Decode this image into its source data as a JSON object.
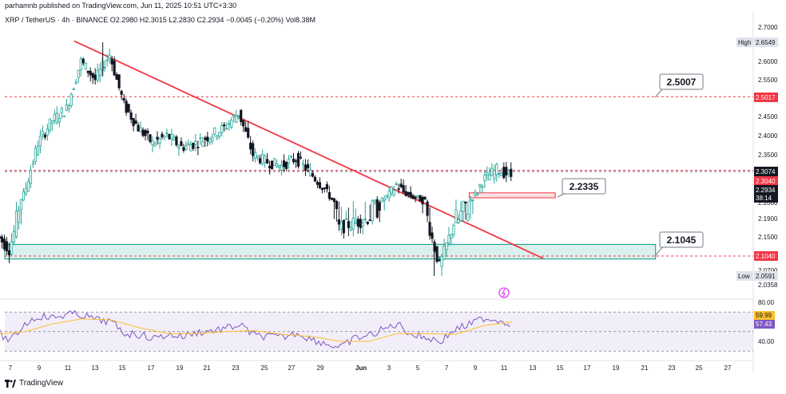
{
  "header": {
    "published": "parhamnb published on TradingView.com, Jun 11, 2025 10:51 UTC+3:30",
    "symbol_line": "XRP / TetherUS · 4h · BINANCE",
    "ohlc": {
      "o": "O2.2980",
      "h": "H2.3015",
      "l": "L2.2830",
      "c": "C2.2934",
      "chg": "−0.0045 (−0.20%)",
      "vol": "Vol8.38M"
    }
  },
  "footer": {
    "brand": "TradingView"
  },
  "colors": {
    "up": "#26a69a",
    "down": "#131722",
    "trend": "#f23645",
    "zone_green": "#089981",
    "zone_red": "#f23645",
    "rsi": "#7e57c2",
    "rsi_ma": "#fbc02d",
    "dash_red": "#f23645"
  },
  "chart_data": {
    "type": "candlestick",
    "price_axis": {
      "min": 2.0358,
      "max": 2.7,
      "ticks": [
        "2.7000",
        "2.6500",
        "2.6000",
        "2.5500",
        "2.5000",
        "2.4500",
        "2.4000",
        "2.3500",
        "2.3000",
        "2.2500",
        "2.2000",
        "2.1900",
        "2.1500",
        "2.0700",
        "2.0358"
      ]
    },
    "x_axis": {
      "ticks": [
        "7",
        "9",
        "11",
        "13",
        "15",
        "17",
        "19",
        "21",
        "23",
        "25",
        "27",
        "29",
        "Jun",
        "3",
        "5",
        "7",
        "9",
        "11",
        "13",
        "15",
        "17",
        "19",
        "21",
        "23",
        "25",
        "27"
      ]
    },
    "price_labels": {
      "high": {
        "label": "High",
        "value": "2.6549"
      },
      "low": {
        "label": "Low",
        "value": "2.0591"
      },
      "line_25017": "2.5017",
      "line_23074": "2.3074",
      "line_23040": "2.3040",
      "current": "2.2934",
      "countdown": "38:14",
      "line_21040": "2.1040"
    },
    "annotations": [
      {
        "text": "2.5007",
        "target_price": 2.5007
      },
      {
        "text": "2.2335",
        "target_price": 2.2335
      },
      {
        "text": "2.1045",
        "target_price": 2.1045
      }
    ],
    "horizontal_levels": [
      2.5017,
      2.3074,
      2.304,
      2.104
    ],
    "trendline": {
      "from": {
        "date": "May 12",
        "price": 2.68
      },
      "to": {
        "date": "Jun 13",
        "price": 2.123
      }
    },
    "zones": [
      {
        "name": "support",
        "price_top": 2.132,
        "price_bottom": 2.097,
        "from": "May 6",
        "to": "Jun 21"
      },
      {
        "name": "demand",
        "price_top": 2.247,
        "price_bottom": 2.223,
        "from": "Jun 8",
        "to": "Jun 14"
      }
    ],
    "price_path": [
      [
        "May 6",
        2.16
      ],
      [
        "May 7",
        2.12
      ],
      [
        "May 8",
        2.24
      ],
      [
        "May 9",
        2.38
      ],
      [
        "May 10",
        2.44
      ],
      [
        "May 11",
        2.47
      ],
      [
        "May 12",
        2.6
      ],
      [
        "May 13",
        2.55
      ],
      [
        "May 14",
        2.62
      ],
      [
        "May 15",
        2.48
      ],
      [
        "May 16",
        2.42
      ],
      [
        "May 17",
        2.38
      ],
      [
        "May 18",
        2.4
      ],
      [
        "May 19",
        2.37
      ],
      [
        "May 20",
        2.38
      ],
      [
        "May 21",
        2.4
      ],
      [
        "May 22",
        2.42
      ],
      [
        "May 23",
        2.46
      ],
      [
        "May 24",
        2.35
      ],
      [
        "May 25",
        2.33
      ],
      [
        "May 26",
        2.32
      ],
      [
        "May 27",
        2.34
      ],
      [
        "May 28",
        2.3
      ],
      [
        "May 29",
        2.26
      ],
      [
        "May 30",
        2.17
      ],
      [
        "May 31",
        2.18
      ],
      [
        "Jun 1",
        2.19
      ],
      [
        "Jun 2",
        2.21
      ],
      [
        "Jun 3",
        2.27
      ],
      [
        "Jun 4",
        2.23
      ],
      [
        "Jun 5",
        2.21
      ],
      [
        "Jun 6",
        2.08
      ],
      [
        "Jun 7",
        2.18
      ],
      [
        "Jun 8",
        2.2
      ],
      [
        "Jun 9",
        2.28
      ],
      [
        "Jun 10",
        2.31
      ],
      [
        "Jun 11",
        2.293
      ]
    ],
    "rsi": {
      "axis_ticks": [
        "80.00",
        "40.00"
      ],
      "labels": {
        "rsi_ma": "59.99",
        "rsi": "57.43"
      },
      "levels": [
        70,
        50,
        30
      ],
      "path": [
        [
          "May 6",
          50
        ],
        [
          "May 7",
          40
        ],
        [
          "May 8",
          58
        ],
        [
          "May 9",
          66
        ],
        [
          "May 10",
          64
        ],
        [
          "May 11",
          68
        ],
        [
          "May 12",
          67
        ],
        [
          "May 13",
          62
        ],
        [
          "May 14",
          60
        ],
        [
          "May 15",
          48
        ],
        [
          "May 16",
          47
        ],
        [
          "May 17",
          43
        ],
        [
          "May 18",
          47
        ],
        [
          "May 19",
          45
        ],
        [
          "May 20",
          49
        ],
        [
          "May 21",
          51
        ],
        [
          "May 22",
          53
        ],
        [
          "May 23",
          57
        ],
        [
          "May 24",
          46
        ],
        [
          "May 25",
          45
        ],
        [
          "May 26",
          44
        ],
        [
          "May 27",
          49
        ],
        [
          "May 28",
          42
        ],
        [
          "May 29",
          38
        ],
        [
          "May 30",
          33
        ],
        [
          "May 31",
          43
        ],
        [
          "Jun 1",
          46
        ],
        [
          "Jun 2",
          52
        ],
        [
          "Jun 3",
          58
        ],
        [
          "Jun 4",
          47
        ],
        [
          "Jun 5",
          44
        ],
        [
          "Jun 6",
          40
        ],
        [
          "Jun 7",
          52
        ],
        [
          "Jun 8",
          57
        ],
        [
          "Jun 9",
          64
        ],
        [
          "Jun 10",
          62
        ],
        [
          "Jun 11",
          58
        ]
      ],
      "ma_path": [
        [
          "May 6",
          47
        ],
        [
          "May 8",
          50
        ],
        [
          "May 10",
          58
        ],
        [
          "May 12",
          63
        ],
        [
          "May 14",
          62
        ],
        [
          "May 16",
          54
        ],
        [
          "May 18",
          48
        ],
        [
          "May 20",
          48
        ],
        [
          "May 22",
          50
        ],
        [
          "May 24",
          51
        ],
        [
          "May 26",
          47
        ],
        [
          "May 28",
          45
        ],
        [
          "May 30",
          40
        ],
        [
          "Jun 1",
          40
        ],
        [
          "Jun 3",
          48
        ],
        [
          "Jun 5",
          48
        ],
        [
          "Jun 7",
          47
        ],
        [
          "Jun 9",
          56
        ],
        [
          "Jun 11",
          60
        ]
      ]
    }
  }
}
